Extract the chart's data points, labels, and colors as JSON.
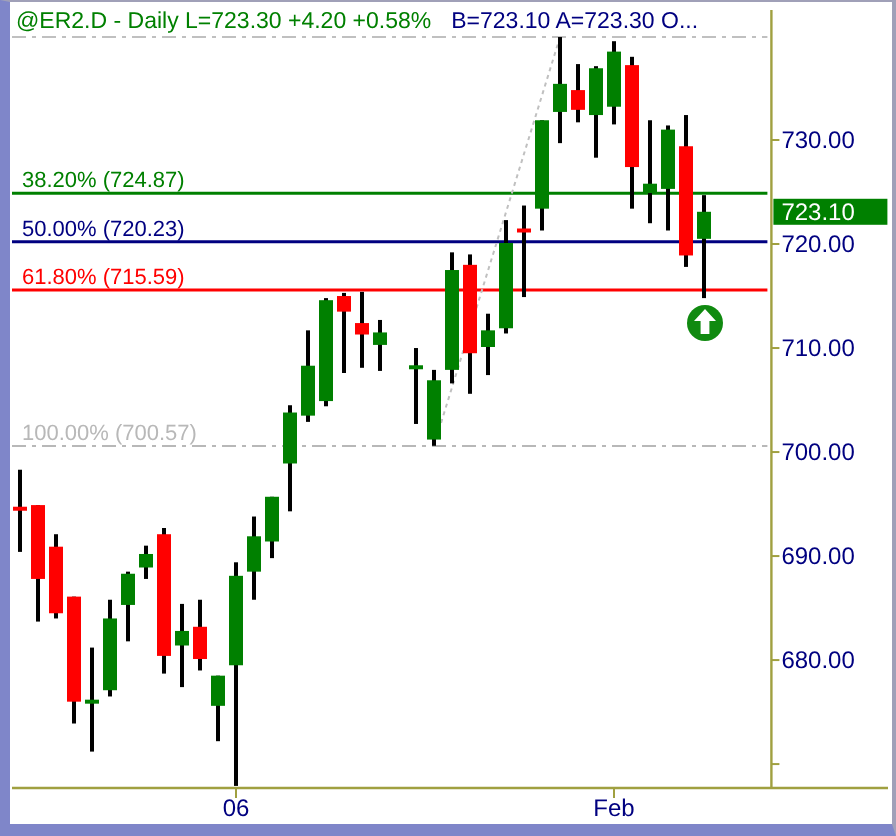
{
  "chart_data": {
    "type": "candlestick",
    "title": "@ER2.D - Daily  L=723.30  +4.20  +0.58%",
    "subtitle": "B=723.10  A=723.30  O...",
    "categories": [
      null,
      null,
      null,
      null,
      null,
      null,
      null,
      null,
      null,
      null,
      null,
      null,
      "06",
      null,
      null,
      null,
      null,
      null,
      null,
      null,
      null,
      null,
      null,
      null,
      null,
      null,
      null,
      null,
      null,
      null,
      null,
      null,
      null,
      "Feb",
      null,
      null,
      null,
      null,
      null,
      null,
      null,
      null
    ],
    "ohlc": [
      [
        694.6,
        698.3,
        690.4,
        694.5
      ],
      [
        694.9,
        694.9,
        683.7,
        687.8
      ],
      [
        690.9,
        692.1,
        684.0,
        684.5
      ],
      [
        686.1,
        686.1,
        673.9,
        676.0
      ],
      [
        675.9,
        681.2,
        671.2,
        676.1
      ],
      [
        677.1,
        685.8,
        676.5,
        684.0
      ],
      [
        685.3,
        688.5,
        681.8,
        688.3
      ],
      [
        688.9,
        691.0,
        687.8,
        690.2
      ],
      [
        692.1,
        692.7,
        678.7,
        680.4
      ],
      [
        681.4,
        685.4,
        677.4,
        682.8
      ],
      [
        683.2,
        685.8,
        679.0,
        680.1
      ],
      [
        675.6,
        678.5,
        672.2,
        678.5
      ],
      [
        679.5,
        689.4,
        667.9,
        688.1
      ],
      [
        688.5,
        693.8,
        685.8,
        691.9
      ],
      [
        691.4,
        695.7,
        689.8,
        695.7
      ],
      [
        698.9,
        704.5,
        694.3,
        703.8
      ],
      [
        703.5,
        711.7,
        702.9,
        708.3
      ],
      [
        704.9,
        714.8,
        704.4,
        714.6
      ],
      [
        715.0,
        715.3,
        707.6,
        713.5
      ],
      [
        712.4,
        715.4,
        708.1,
        711.3
      ],
      [
        710.3,
        712.7,
        707.8,
        711.5
      ],
      null,
      [
        708.1,
        710.0,
        702.7,
        708.2
      ],
      [
        701.2,
        707.9,
        700.6,
        706.9
      ],
      [
        707.9,
        719.2,
        706.6,
        717.5
      ],
      [
        718.0,
        719.0,
        705.6,
        709.5
      ],
      [
        710.1,
        713.3,
        707.4,
        711.7
      ],
      [
        711.9,
        722.3,
        711.4,
        720.1
      ],
      [
        721.4,
        723.7,
        714.9,
        721.2
      ],
      [
        723.4,
        731.9,
        721.3,
        731.9
      ],
      [
        732.7,
        739.9,
        729.7,
        735.4
      ],
      [
        734.8,
        737.3,
        731.7,
        732.9
      ],
      [
        732.4,
        737.1,
        728.3,
        736.9
      ],
      [
        733.2,
        739.5,
        731.5,
        738.5
      ],
      [
        737.2,
        738.0,
        723.4,
        727.4
      ],
      [
        724.9,
        731.9,
        722.0,
        725.8
      ],
      [
        725.3,
        731.4,
        721.3,
        731.0
      ],
      [
        729.4,
        732.4,
        717.8,
        718.9
      ],
      [
        720.5,
        724.7,
        714.8,
        723.1
      ],
      null,
      null,
      null
    ],
    "colors": [
      "#ff0000",
      "#ff0000",
      "#ff0000",
      "#ff0000",
      "#008000",
      "#008000",
      "#008000",
      "#008000",
      "#ff0000",
      "#008000",
      "#ff0000",
      "#008000",
      "#008000",
      "#008000",
      "#008000",
      "#008000",
      "#008000",
      "#008000",
      "#ff0000",
      "#ff0000",
      "#008000",
      null,
      "#008000",
      "#008000",
      "#008000",
      "#ff0000",
      "#008000",
      "#008000",
      "#ff0000",
      "#008000",
      "#008000",
      "#ff0000",
      "#008000",
      "#008000",
      "#ff0000",
      "#008000",
      "#008000",
      "#ff0000",
      "#008000",
      null,
      null,
      null
    ],
    "series": [
      {
        "type": "line",
        "color": "#c0c0c0",
        "line_style": "dotted",
        "values": [
          null,
          null,
          null,
          null,
          null,
          null,
          null,
          null,
          null,
          null,
          null,
          null,
          null,
          null,
          null,
          null,
          null,
          null,
          null,
          null,
          null,
          null,
          null,
          700.6,
          null,
          null,
          null,
          null,
          null,
          null,
          739.9,
          null,
          null,
          null,
          null,
          null,
          null,
          null,
          null,
          null,
          null,
          null
        ]
      }
    ],
    "ylim": [
      667.7,
      742.5
    ],
    "yticks": [
      {
        "value": 670,
        "label": null
      },
      {
        "value": 680,
        "label": "680.00"
      },
      {
        "value": 690,
        "label": "690.00"
      },
      {
        "value": 700,
        "label": "700.00"
      },
      {
        "value": 710,
        "label": "710.00"
      },
      {
        "value": 720,
        "label": "720.00"
      },
      {
        "value": 730,
        "label": "730.00"
      }
    ],
    "ref_lines": [
      {
        "axis": "y",
        "value": 739.9,
        "label": null,
        "color": "#c0c0c0",
        "line_style": "dashed"
      },
      {
        "axis": "y",
        "value": 724.87,
        "label": "38.20% (724.87)",
        "color": "#008000"
      },
      {
        "axis": "y",
        "value": 720.23,
        "label": "50.00% (720.23)",
        "color": "#000080"
      },
      {
        "axis": "y",
        "value": 715.59,
        "label": "61.80% (715.59)",
        "color": "#ff0000"
      },
      {
        "axis": "y",
        "value": 700.57,
        "label": "100.00% (700.57)",
        "color": "#b8b8b8",
        "line_style": "dashed"
      }
    ],
    "annotations": [
      "723.10"
    ]
  }
}
